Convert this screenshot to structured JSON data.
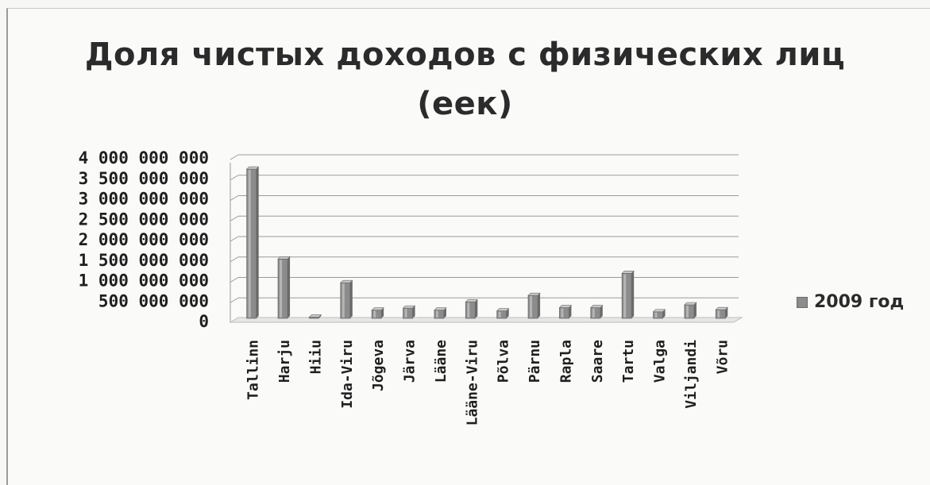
{
  "chart_data": {
    "type": "bar",
    "title_lines": [
      "Доля чистых доходов с физических лиц",
      "(еек)"
    ],
    "categories": [
      "Tallinn",
      "Harju",
      "Hiiu",
      "Ida-Viru",
      "Jõgeva",
      "Järva",
      "Lääne",
      "Lääne-Viru",
      "Põlva",
      "Pärnu",
      "Rapla",
      "Saare",
      "Tartu",
      "Valga",
      "Viljandi",
      "Võru"
    ],
    "series": [
      {
        "name": "2009 год",
        "values": [
          3650000000,
          1450000000,
          30000000,
          870000000,
          200000000,
          250000000,
          200000000,
          400000000,
          180000000,
          560000000,
          260000000,
          260000000,
          1100000000,
          160000000,
          330000000,
          210000000
        ]
      }
    ],
    "y_ticks": [
      "0",
      "500 000 000",
      "1 000 000 000",
      "1 500 000 000",
      "2 000 000 000",
      "2 500 000 000",
      "3 000 000 000",
      "3 500 000 000",
      "4 000 000 000"
    ],
    "ylim": [
      0,
      4000000000
    ],
    "grid": true,
    "legend_position": "right",
    "colors": {
      "bar": "#8c8c8c",
      "bar_light": "#c9c9c9",
      "bar_dark": "#6a6a6a",
      "grid": "#9a9a9a"
    }
  }
}
